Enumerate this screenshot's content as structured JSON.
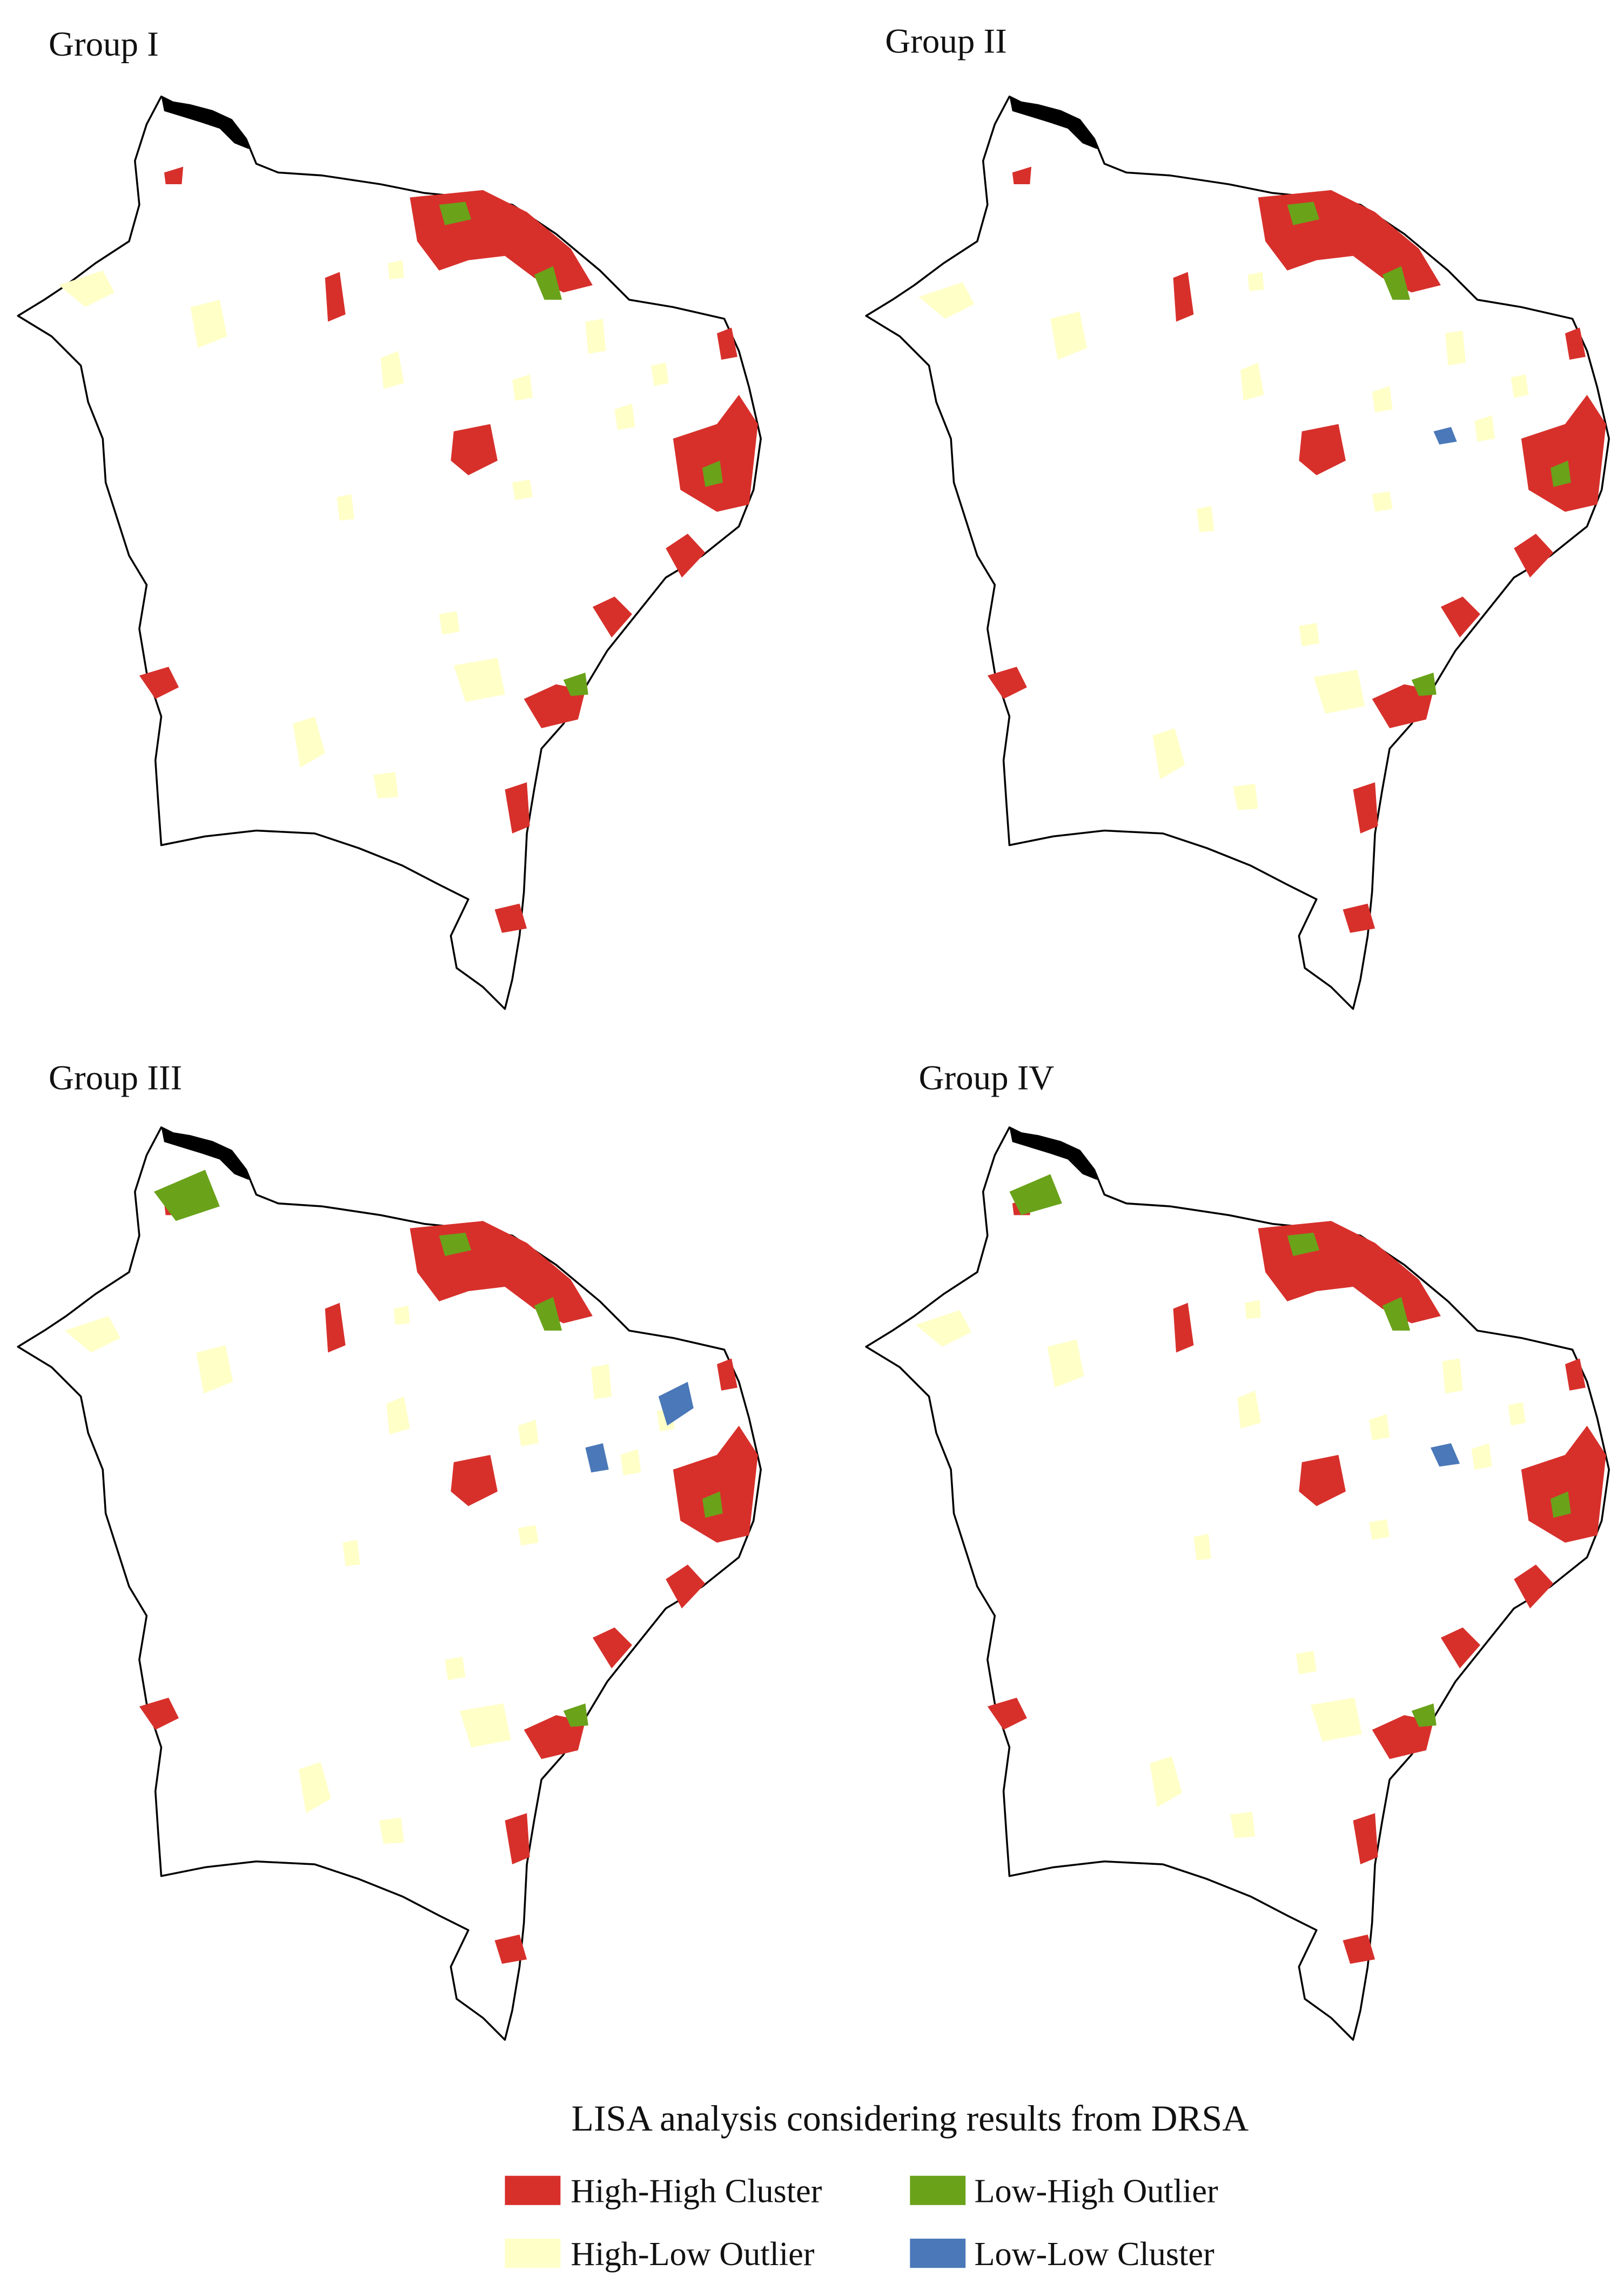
{
  "panels": [
    {
      "title": "Group I"
    },
    {
      "title": "Group II"
    },
    {
      "title": "Group III"
    },
    {
      "title": "Group IV"
    }
  ],
  "legend": {
    "title": "LISA analysis considering results from DRSA",
    "items": [
      {
        "label": "High-High Cluster",
        "color": "#d7302b"
      },
      {
        "label": "Low-High Outlier",
        "color": "#6aa21a"
      },
      {
        "label": "High-Low Outlier",
        "color": "#ffffc8"
      },
      {
        "label": "Low-Low Cluster",
        "color": "#4a78b8"
      }
    ]
  }
}
